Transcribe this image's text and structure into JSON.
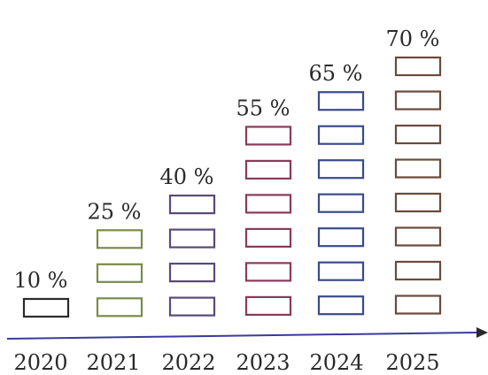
{
  "chart_data": {
    "type": "bar",
    "categories": [
      "2020",
      "2021",
      "2022",
      "2023",
      "2024",
      "2025"
    ],
    "values": [
      10,
      25,
      40,
      55,
      65,
      70
    ],
    "value_labels": [
      "10 %",
      "25 %",
      "40 %",
      "55 %",
      "65 %",
      "70 %"
    ],
    "blocks_per_bar": [
      1,
      3,
      4,
      6,
      7,
      8
    ],
    "title": "",
    "xlabel": "",
    "ylabel": "",
    "grid": false,
    "legend": "none",
    "colors": {
      "block_stroke": [
        "#2a2a2a",
        "#7a8a4a",
        "#5a4a7a",
        "#8a3a5a",
        "#3a4a8a",
        "#6a4a3a"
      ],
      "axis": "#3a3aa0",
      "text": "#2a2a2a"
    }
  }
}
